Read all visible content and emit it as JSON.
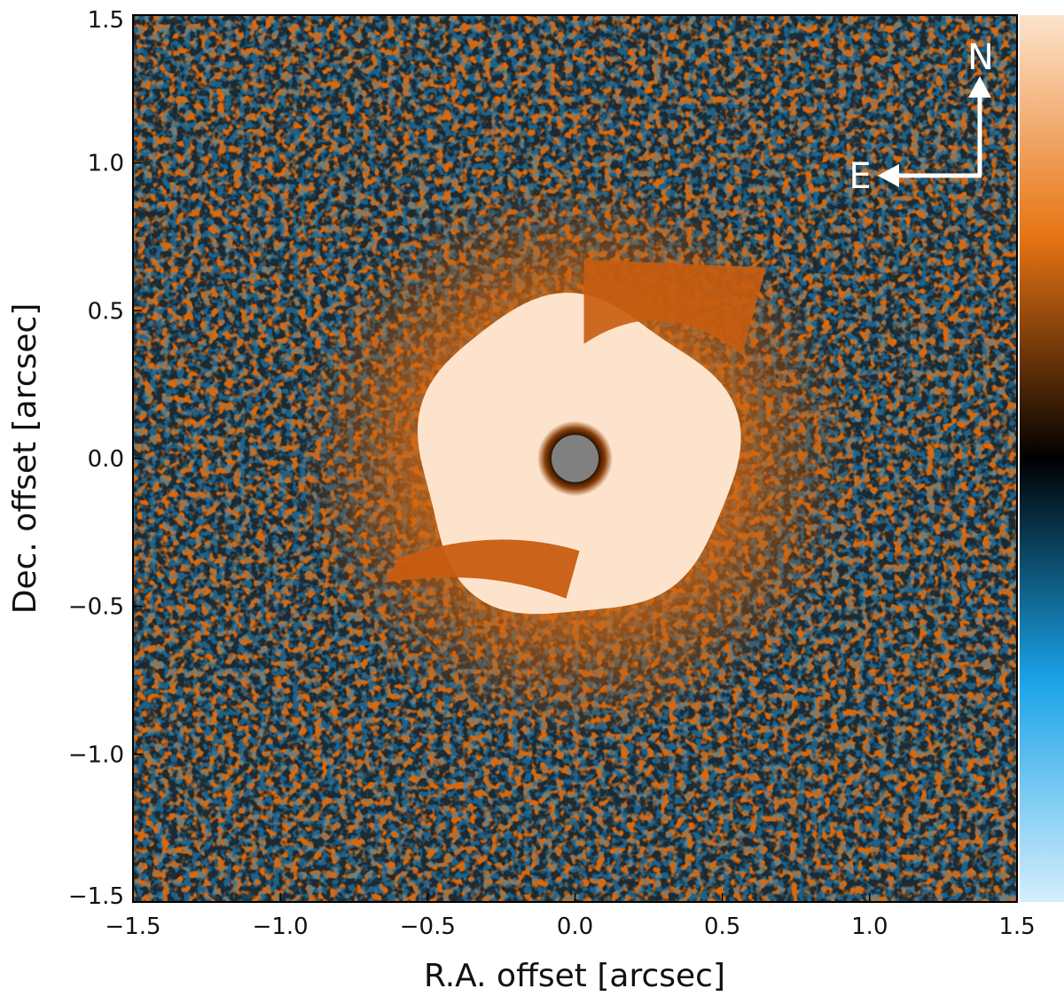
{
  "chart_data": {
    "type": "heatmap",
    "title": "",
    "xlabel": "R.A. offset [arcsec]",
    "ylabel": "Dec. offset [arcsec]",
    "xlim": [
      -1.5,
      1.5
    ],
    "ylim": [
      -1.5,
      1.5
    ],
    "x_ticks": [
      {
        "value": -1.5,
        "label": "−1.5"
      },
      {
        "value": -1.0,
        "label": "−1.0"
      },
      {
        "value": -0.5,
        "label": "−0.5"
      },
      {
        "value": 0.0,
        "label": "0.0"
      },
      {
        "value": 0.5,
        "label": "0.5"
      },
      {
        "value": 1.0,
        "label": "1.0"
      },
      {
        "value": 1.5,
        "label": "1.5"
      }
    ],
    "y_ticks": [
      {
        "value": -1.5,
        "label": "−1.5"
      },
      {
        "value": -1.0,
        "label": "−1.0"
      },
      {
        "value": -0.5,
        "label": "−0.5"
      },
      {
        "value": 0.0,
        "label": "0.0"
      },
      {
        "value": 0.5,
        "label": "0.5"
      },
      {
        "value": 1.0,
        "label": "1.0"
      },
      {
        "value": 1.5,
        "label": "1.5"
      }
    ],
    "grid": false,
    "colormap": {
      "low": "#d5effc",
      "mid_low": "#1aa3e8",
      "zero": "#000000",
      "mid_high": "#e77413",
      "high": "#fde3cc"
    },
    "features": {
      "coronagraph_mask": {
        "x": 0.0,
        "y": 0.0,
        "radius": 0.08,
        "color": "#808080"
      },
      "disk": {
        "center_x": 0.0,
        "center_y": 0.0,
        "radius": 0.5,
        "color": "#fde3cc"
      },
      "halo_color": "#c85c10"
    },
    "compass": {
      "north_label": "N",
      "east_label": "E",
      "placement": "top-right",
      "color": "#ffffff"
    }
  }
}
